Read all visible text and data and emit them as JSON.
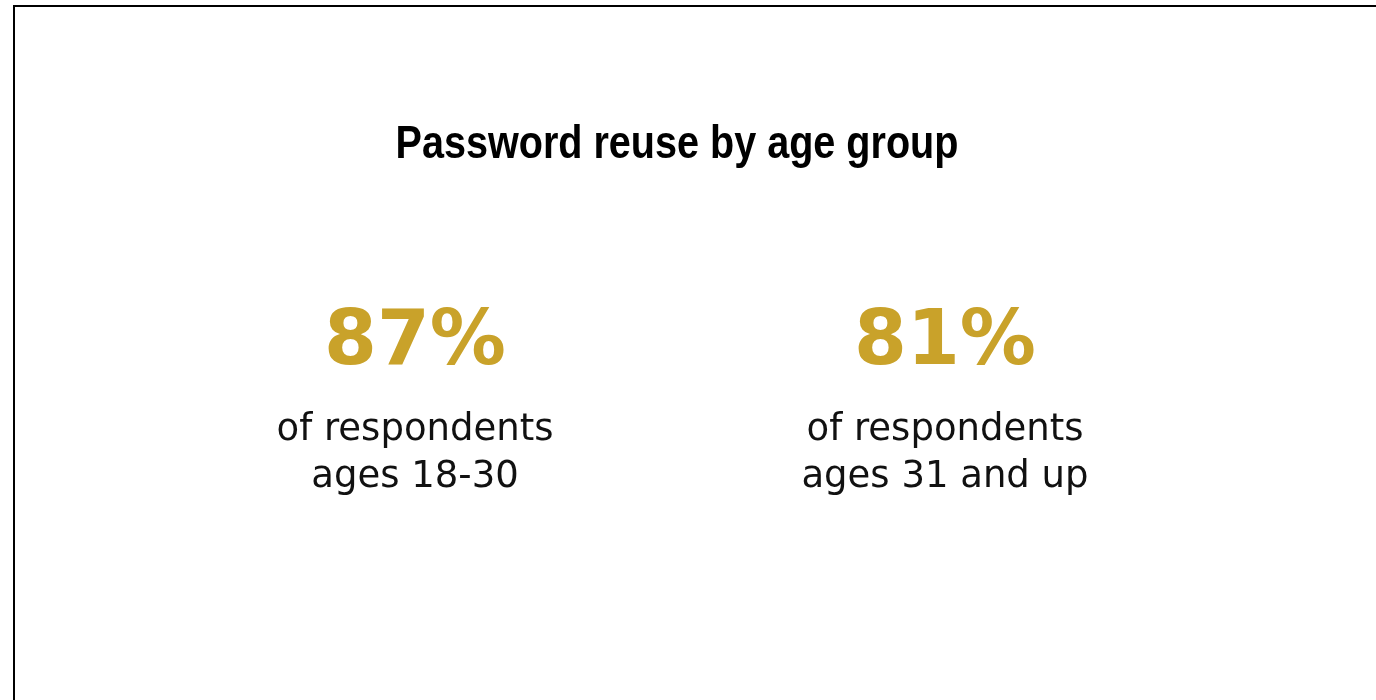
{
  "chart_data": {
    "type": "other",
    "title": "Password reuse by age group",
    "categories": [
      "of respondents\nages 18-30",
      "of respondents\nages 31 and up"
    ],
    "values": [
      87,
      81
    ],
    "value_labels": [
      "87%",
      "81%"
    ],
    "color": "#c9a22a"
  }
}
